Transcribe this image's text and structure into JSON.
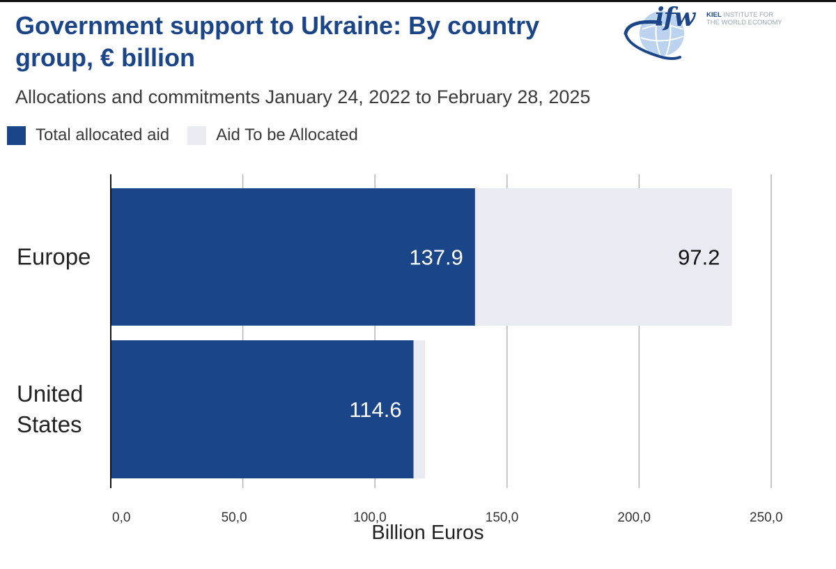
{
  "logo": {
    "mark": "ifw",
    "line1_strong": "KIEL",
    "line1_rest": "INSTITUTE FOR",
    "line2": "THE WORLD ECONOMY"
  },
  "colors": {
    "title": "#1a4589",
    "allocated": "#1a4589",
    "to_be_allocated": "#e9eaf2",
    "grid": "#b4b4b4",
    "text": "#3a3a3a"
  },
  "chart_data": {
    "type": "bar",
    "orientation": "horizontal",
    "stacked": true,
    "title": "Government support to Ukraine: By country group, € billion",
    "subtitle": "Allocations and commitments January 24, 2022 to February 28, 2025",
    "categories": [
      "Europe",
      "United States"
    ],
    "category_display": [
      [
        "Europe"
      ],
      [
        "United",
        "States"
      ]
    ],
    "series": [
      {
        "name": "Total allocated aid",
        "values": [
          137.9,
          114.6
        ],
        "labels": [
          "137.9",
          "114.6"
        ],
        "color": "#1a4589"
      },
      {
        "name": "Aid To be Allocated",
        "values": [
          97.2,
          4.4
        ],
        "labels": [
          "97.2",
          null
        ],
        "color": "#e9eaf2"
      }
    ],
    "xlabel": "Billion Euros",
    "ylabel": "",
    "xlim": [
      0,
      250
    ],
    "xticks": [
      0,
      50,
      100,
      150,
      200,
      250
    ],
    "xtick_labels": [
      "0,0",
      "50,0",
      "100,0",
      "150,0",
      "200,0",
      "250,0"
    ],
    "grid": true,
    "legend": "top-left"
  }
}
